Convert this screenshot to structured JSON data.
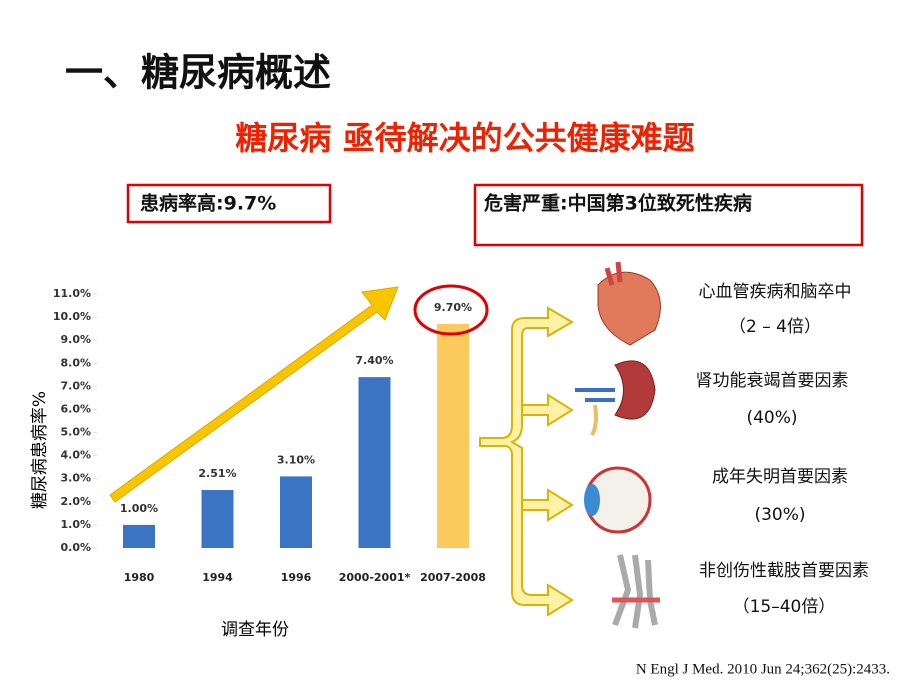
{
  "header": {
    "title": "一、糖尿病概述",
    "subtitle": "糖尿病 亟待解决的公共健康难题"
  },
  "callouts": [
    "患病率高:9.7%",
    "危害严重:中国第3位致死性疾病"
  ],
  "chart_data": {
    "type": "bar",
    "y_label": "糖尿病患病率%",
    "x_label": "调查年份",
    "categories": [
      "1980",
      "1994",
      "1996",
      "2000-2001*",
      "2007-2008"
    ],
    "values": [
      1.0,
      2.51,
      3.1,
      7.4,
      9.7
    ],
    "value_labels": [
      "1.00%",
      "2.51%",
      "3.10%",
      "7.40%",
      "9.70%"
    ],
    "colors": [
      "#3b74c2",
      "#3b74c2",
      "#3b74c2",
      "#3b74c2",
      "#fcc95c"
    ],
    "ylim": [
      0,
      11
    ],
    "yticks": [
      {
        "value": 0,
        "label": "0.0%"
      },
      {
        "value": 1,
        "label": "1.0%"
      },
      {
        "value": 2,
        "label": "2.0%"
      },
      {
        "value": 3,
        "label": "3.0%"
      },
      {
        "value": 4,
        "label": "4.0%"
      },
      {
        "value": 5,
        "label": "5.0%"
      },
      {
        "value": 6,
        "label": "6.0%"
      },
      {
        "value": 7,
        "label": "7.0%"
      },
      {
        "value": 8,
        "label": "8.0%"
      },
      {
        "value": 9,
        "label": "9.0%"
      },
      {
        "value": 10,
        "label": "10.0%"
      },
      {
        "value": 11,
        "label": "11.0%"
      }
    ],
    "grid": false
  },
  "complications": [
    {
      "name": "心血管疾病和脑卒中",
      "detail": "（2 – 4倍）"
    },
    {
      "name": "肾功能衰竭首要因素",
      "detail": "(40%)"
    },
    {
      "name": "成年失明首要因素",
      "detail": "(30%)"
    },
    {
      "name": "非创伤性截肢首要因素",
      "detail": "（15–40倍）"
    }
  ],
  "citation": "N Engl J Med. 2010 Jun 24;362(25):2433."
}
